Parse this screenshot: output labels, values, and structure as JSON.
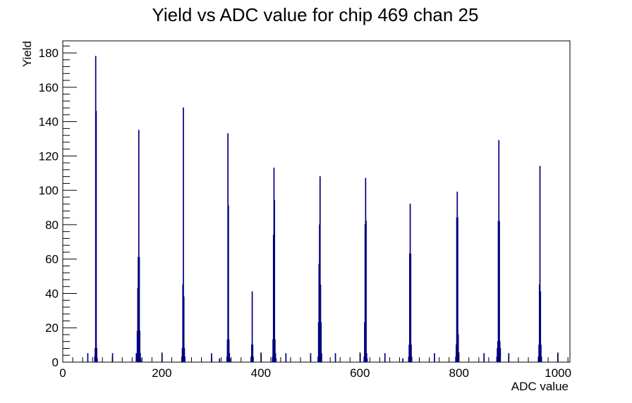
{
  "chart_data": {
    "type": "bar",
    "title": "Yield vs ADC value for chip 469 chan 25",
    "xlabel": "ADC value",
    "ylabel": "Yield",
    "xlim": [
      0,
      1024
    ],
    "ylim": [
      0,
      187
    ],
    "x_ticks": [
      0,
      200,
      400,
      600,
      800,
      1000
    ],
    "y_ticks": [
      0,
      20,
      40,
      60,
      80,
      100,
      120,
      140,
      160,
      180
    ],
    "grid": false,
    "legend": "none",
    "bar_color": "#000080",
    "bins": [
      {
        "x": 50,
        "y": 5
      },
      {
        "x": 64,
        "y": 3
      },
      {
        "x": 65,
        "y": 8
      },
      {
        "x": 66,
        "y": 178
      },
      {
        "x": 67,
        "y": 146
      },
      {
        "x": 68,
        "y": 8
      },
      {
        "x": 69,
        "y": 2
      },
      {
        "x": 100,
        "y": 5
      },
      {
        "x": 148,
        "y": 5
      },
      {
        "x": 150,
        "y": 18
      },
      {
        "x": 151,
        "y": 43
      },
      {
        "x": 152,
        "y": 61
      },
      {
        "x": 153,
        "y": 135
      },
      {
        "x": 154,
        "y": 61
      },
      {
        "x": 155,
        "y": 18
      },
      {
        "x": 156,
        "y": 5
      },
      {
        "x": 157,
        "y": 2
      },
      {
        "x": 200,
        "y": 5
      },
      {
        "x": 240,
        "y": 3
      },
      {
        "x": 241,
        "y": 8
      },
      {
        "x": 242,
        "y": 45
      },
      {
        "x": 243,
        "y": 148
      },
      {
        "x": 244,
        "y": 38
      },
      {
        "x": 245,
        "y": 8
      },
      {
        "x": 246,
        "y": 3
      },
      {
        "x": 300,
        "y": 5
      },
      {
        "x": 316,
        "y": 2
      },
      {
        "x": 331,
        "y": 3
      },
      {
        "x": 332,
        "y": 13
      },
      {
        "x": 333,
        "y": 133
      },
      {
        "x": 334,
        "y": 91
      },
      {
        "x": 335,
        "y": 13
      },
      {
        "x": 336,
        "y": 5
      },
      {
        "x": 337,
        "y": 2
      },
      {
        "x": 380,
        "y": 3
      },
      {
        "x": 381,
        "y": 10
      },
      {
        "x": 382,
        "y": 41
      },
      {
        "x": 383,
        "y": 10
      },
      {
        "x": 384,
        "y": 3
      },
      {
        "x": 400,
        "y": 5
      },
      {
        "x": 423,
        "y": 3
      },
      {
        "x": 424,
        "y": 13
      },
      {
        "x": 425,
        "y": 74
      },
      {
        "x": 426,
        "y": 113
      },
      {
        "x": 427,
        "y": 94
      },
      {
        "x": 428,
        "y": 13
      },
      {
        "x": 429,
        "y": 5
      },
      {
        "x": 430,
        "y": 2
      },
      {
        "x": 450,
        "y": 5
      },
      {
        "x": 500,
        "y": 5
      },
      {
        "x": 515,
        "y": 3
      },
      {
        "x": 516,
        "y": 23
      },
      {
        "x": 517,
        "y": 57
      },
      {
        "x": 518,
        "y": 80
      },
      {
        "x": 519,
        "y": 108
      },
      {
        "x": 520,
        "y": 45
      },
      {
        "x": 521,
        "y": 23
      },
      {
        "x": 522,
        "y": 5
      },
      {
        "x": 550,
        "y": 5
      },
      {
        "x": 600,
        "y": 5
      },
      {
        "x": 608,
        "y": 3
      },
      {
        "x": 609,
        "y": 23
      },
      {
        "x": 610,
        "y": 80
      },
      {
        "x": 611,
        "y": 107
      },
      {
        "x": 612,
        "y": 82
      },
      {
        "x": 613,
        "y": 5
      },
      {
        "x": 614,
        "y": 2
      },
      {
        "x": 650,
        "y": 5
      },
      {
        "x": 686,
        "y": 2
      },
      {
        "x": 698,
        "y": 3
      },
      {
        "x": 699,
        "y": 10
      },
      {
        "x": 700,
        "y": 63
      },
      {
        "x": 701,
        "y": 92
      },
      {
        "x": 702,
        "y": 63
      },
      {
        "x": 703,
        "y": 10
      },
      {
        "x": 704,
        "y": 3
      },
      {
        "x": 750,
        "y": 5
      },
      {
        "x": 793,
        "y": 3
      },
      {
        "x": 794,
        "y": 10
      },
      {
        "x": 795,
        "y": 84
      },
      {
        "x": 796,
        "y": 99
      },
      {
        "x": 797,
        "y": 84
      },
      {
        "x": 798,
        "y": 16
      },
      {
        "x": 799,
        "y": 5
      },
      {
        "x": 850,
        "y": 5
      },
      {
        "x": 876,
        "y": 3
      },
      {
        "x": 877,
        "y": 8
      },
      {
        "x": 878,
        "y": 12
      },
      {
        "x": 879,
        "y": 82
      },
      {
        "x": 880,
        "y": 129
      },
      {
        "x": 881,
        "y": 82
      },
      {
        "x": 882,
        "y": 12
      },
      {
        "x": 883,
        "y": 8
      },
      {
        "x": 900,
        "y": 5
      },
      {
        "x": 960,
        "y": 3
      },
      {
        "x": 961,
        "y": 10
      },
      {
        "x": 962,
        "y": 45
      },
      {
        "x": 963,
        "y": 114
      },
      {
        "x": 964,
        "y": 41
      },
      {
        "x": 965,
        "y": 10
      },
      {
        "x": 966,
        "y": 3
      },
      {
        "x": 999,
        "y": 5
      }
    ]
  }
}
